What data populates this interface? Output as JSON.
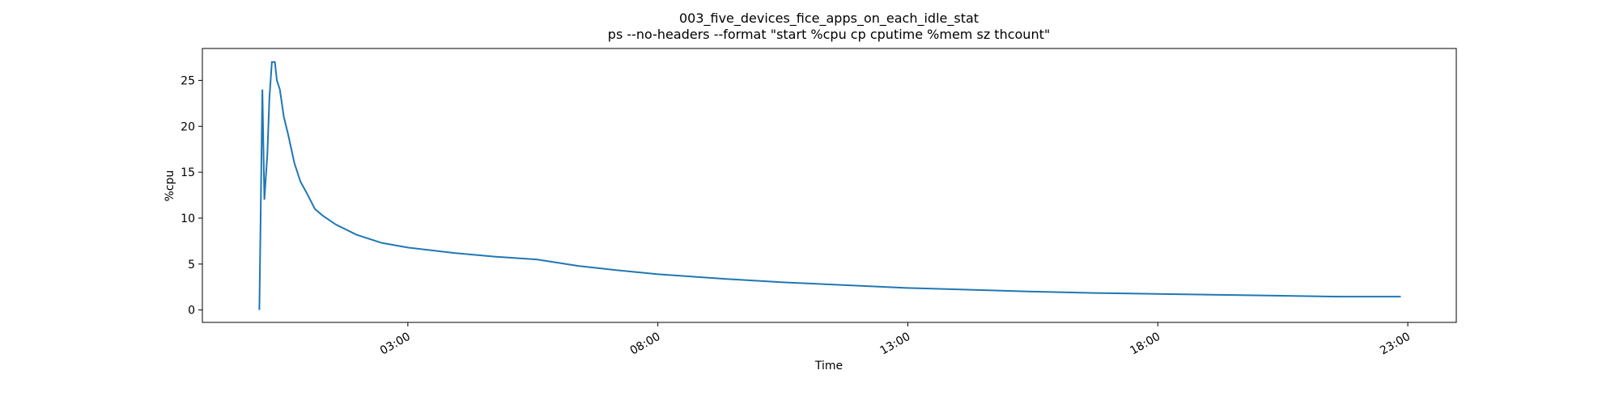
{
  "chart_data": {
    "type": "line",
    "title": "003_five_devices_fice_apps_on_each_idle_stat",
    "subtitle": "ps --no-headers --format \"start %cpu cp cputime %mem sz thcount\"",
    "x_label": "Time",
    "y_label": "%cpu",
    "x": [
      0.03,
      0.09,
      0.13,
      0.19,
      0.23,
      0.28,
      0.34,
      0.38,
      0.44,
      0.52,
      0.61,
      0.73,
      0.85,
      1.0,
      1.14,
      1.29,
      1.56,
      1.97,
      2.48,
      3.0,
      3.93,
      4.76,
      5.58,
      6.41,
      7.24,
      8.0,
      9.3,
      10.54,
      11.79,
      12.98,
      14.26,
      15.5,
      16.74,
      17.98,
      19.22,
      20.46,
      21.7,
      22.86
    ],
    "series": [
      {
        "name": "%cpu",
        "color": "#1f77b4",
        "values": [
          0,
          24,
          12,
          17,
          23,
          27,
          27,
          25,
          24,
          21,
          19,
          16,
          14,
          12.5,
          11,
          10.3,
          9.3,
          8.2,
          7.3,
          6.8,
          6.2,
          5.8,
          5.5,
          4.8,
          4.3,
          3.9,
          3.4,
          3.0,
          2.7,
          2.4,
          2.2,
          2.0,
          1.85,
          1.75,
          1.65,
          1.55,
          1.45,
          1.45
        ]
      }
    ],
    "xlim": [
      -1.11,
      23.97
    ],
    "xticks": [
      {
        "value": 3,
        "label": "03:00"
      },
      {
        "value": 8,
        "label": "08:00"
      },
      {
        "value": 13,
        "label": "13:00"
      },
      {
        "value": 18,
        "label": "18:00"
      },
      {
        "value": 23,
        "label": "23:00"
      }
    ],
    "ylim": [
      -1.35,
      28.47
    ],
    "yticks": [
      0,
      5,
      10,
      15,
      20,
      25
    ]
  }
}
